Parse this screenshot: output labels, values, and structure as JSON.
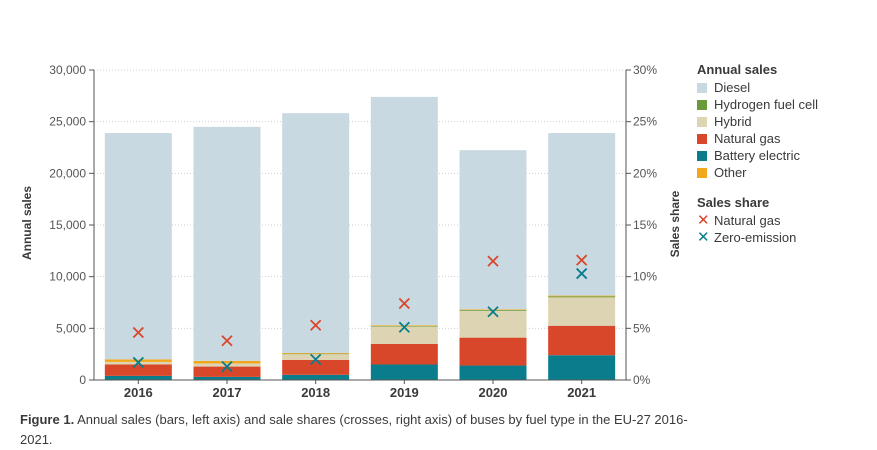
{
  "chart_data": {
    "type": "bar",
    "stacked": true,
    "categories": [
      "2016",
      "2017",
      "2018",
      "2019",
      "2020",
      "2021"
    ],
    "ylabel": "Annual sales",
    "y2label": "Sales share",
    "ylim": [
      0,
      30000
    ],
    "y2lim": [
      0,
      30
    ],
    "yticks": [
      "0",
      "5,000",
      "10,000",
      "15,000",
      "20,000",
      "25,000",
      "30,000"
    ],
    "y2ticks": [
      "0%",
      "5%",
      "10%",
      "15%",
      "20%",
      "25%",
      "30%"
    ],
    "grid": "horizontal dotted",
    "legend_position": "right",
    "legend_titles": {
      "bars": "Annual sales",
      "crosses": "Sales share"
    },
    "series": [
      {
        "name": "Battery electric",
        "color": "#0a7d8c",
        "values": [
          400,
          300,
          500,
          1500,
          1400,
          2400
        ]
      },
      {
        "name": "Natural gas",
        "color": "#d9472b",
        "values": [
          1100,
          1000,
          1450,
          2000,
          2700,
          2850
        ]
      },
      {
        "name": "Hybrid",
        "color": "#ddd4b3",
        "values": [
          250,
          300,
          550,
          1700,
          2600,
          2750
        ]
      },
      {
        "name": "Hydrogen fuel cell",
        "color": "#6a9a3a",
        "values": [
          0,
          0,
          50,
          30,
          80,
          100
        ]
      },
      {
        "name": "Other",
        "color": "#f2a81d",
        "values": [
          250,
          250,
          70,
          70,
          60,
          70
        ]
      },
      {
        "name": "Diesel",
        "color": "#c8d9e1",
        "values": [
          21900,
          22650,
          23200,
          22100,
          15400,
          15730
        ]
      }
    ],
    "share_series": [
      {
        "name": "Natural gas",
        "color": "#d9472b",
        "axis": "right",
        "values": [
          4.6,
          3.8,
          5.3,
          7.4,
          11.5,
          11.6
        ]
      },
      {
        "name": "Zero-emission",
        "color": "#0a7d8c",
        "axis": "right",
        "values": [
          1.7,
          1.3,
          2.0,
          5.1,
          6.6,
          10.3
        ]
      }
    ],
    "legend_order": [
      "Diesel",
      "Hydrogen fuel cell",
      "Hybrid",
      "Natural gas",
      "Battery electric",
      "Other"
    ]
  },
  "caption": {
    "label": "Figure 1.",
    "text": " Annual sales (bars, left axis) and sale shares (crosses, right axis) of buses by fuel type in the EU-27 2016-2021."
  }
}
